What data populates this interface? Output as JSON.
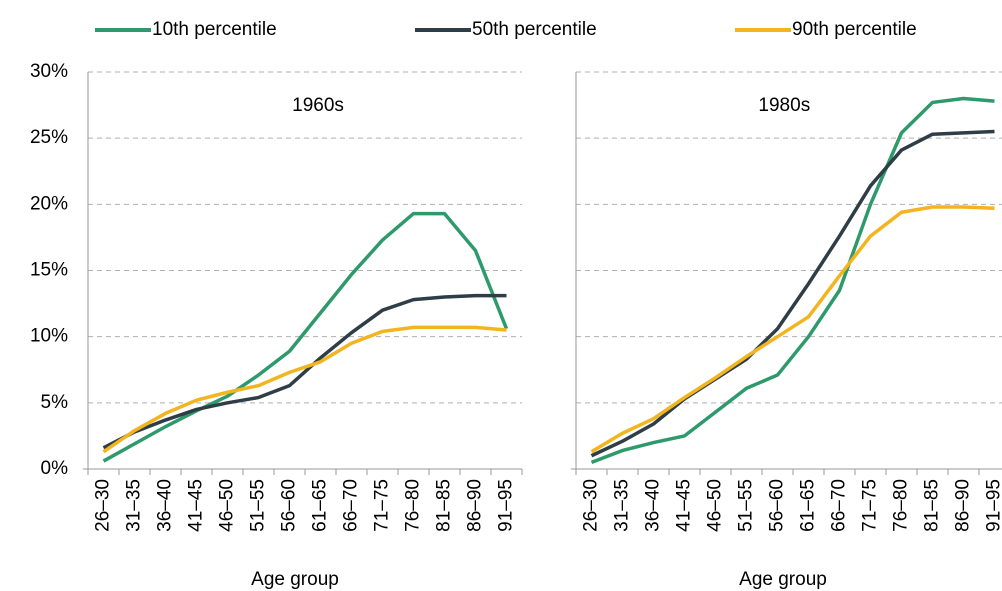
{
  "chart_data": [
    {
      "type": "line",
      "title": "1960s",
      "x_label": "Age group",
      "categories": [
        "26–30",
        "31–35",
        "36–40",
        "41–45",
        "46–50",
        "51–55",
        "56–60",
        "61–65",
        "66–70",
        "71–75",
        "76–80",
        "81–85",
        "86–90",
        "91–95"
      ],
      "ylim": [
        0,
        30
      ],
      "yticks": [
        {
          "value": 0,
          "label": "0%"
        },
        {
          "value": 5,
          "label": "5%"
        },
        {
          "value": 10,
          "label": "10%"
        },
        {
          "value": 15,
          "label": "15%"
        },
        {
          "value": 20,
          "label": "20%"
        },
        {
          "value": 25,
          "label": "25%"
        },
        {
          "value": 30,
          "label": "30%"
        }
      ],
      "grid": true,
      "series": [
        {
          "name": "10th percentile",
          "color": "#2e9a6b",
          "values": [
            0.6,
            1.9,
            3.2,
            4.4,
            5.5,
            7.1,
            8.9,
            11.8,
            14.7,
            17.3,
            19.3,
            19.3,
            16.5,
            10.6
          ]
        },
        {
          "name": "50th percentile",
          "color": "#2f3e46",
          "values": [
            1.6,
            2.8,
            3.7,
            4.5,
            5.0,
            5.4,
            6.3,
            8.4,
            10.3,
            12.0,
            12.8,
            13.0,
            13.1,
            13.1
          ]
        },
        {
          "name": "90th percentile",
          "color": "#f2b51f",
          "values": [
            1.3,
            2.9,
            4.2,
            5.2,
            5.8,
            6.3,
            7.3,
            8.1,
            9.5,
            10.4,
            10.7,
            10.7,
            10.7,
            10.5
          ]
        }
      ]
    },
    {
      "type": "line",
      "title": "1980s",
      "x_label": "Age group",
      "categories": [
        "26–30",
        "31–35",
        "36–40",
        "41–45",
        "46–50",
        "51–55",
        "56–60",
        "61–65",
        "66–70",
        "71–75",
        "76–80",
        "81–85",
        "86–90",
        "91–95"
      ],
      "ylim": [
        0,
        30
      ],
      "yticks": [
        0,
        5,
        10,
        15,
        20,
        25,
        30
      ],
      "grid": true,
      "series": [
        {
          "color": "#2e9a6b",
          "values": [
            0.5,
            1.4,
            2.0,
            2.5,
            4.3,
            6.1,
            7.1,
            10.0,
            13.5,
            20.0,
            25.4,
            27.7,
            28.0,
            27.8
          ]
        },
        {
          "color": "#2f3e46",
          "values": [
            1.0,
            2.1,
            3.4,
            5.3,
            6.8,
            8.3,
            10.6,
            14.0,
            17.6,
            21.4,
            24.1,
            25.3,
            25.4,
            25.5
          ]
        },
        {
          "color": "#f2b51f",
          "values": [
            1.3,
            2.7,
            3.8,
            5.4,
            6.9,
            8.5,
            10.0,
            11.5,
            14.6,
            17.6,
            19.4,
            19.8,
            19.8,
            19.7
          ]
        }
      ]
    }
  ]
}
